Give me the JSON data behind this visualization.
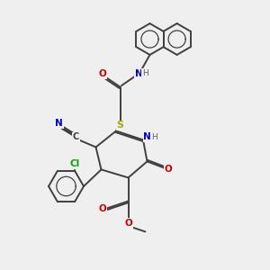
{
  "background_color": "#efefef",
  "atom_colors": {
    "C": "#404040",
    "N": "#0000cc",
    "O": "#cc0000",
    "S": "#aaaa00",
    "Cl": "#00aa00",
    "H": "#606060"
  },
  "bond_color": "#404040",
  "bond_width": 1.4,
  "figsize": [
    3.0,
    3.0
  ],
  "dpi": 100
}
